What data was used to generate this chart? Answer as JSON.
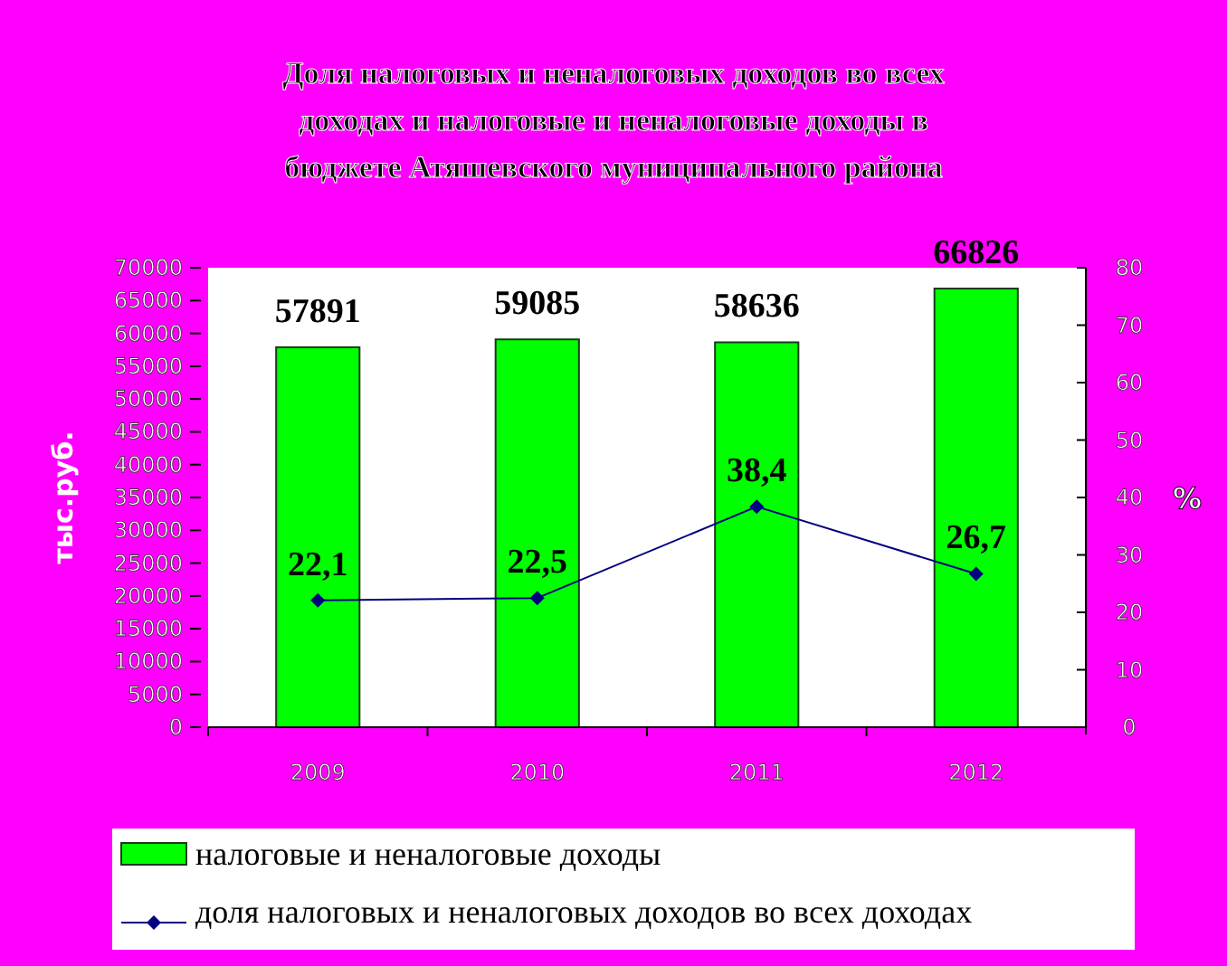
{
  "chart_data": {
    "type": "bar",
    "title": "Доля налоговых и неналоговых доходов во всех доходах и налоговые и неналоговые доходы в бюджете Атяшевского муниципального района",
    "categories": [
      "2009",
      "2010",
      "2011",
      "2012"
    ],
    "series": [
      {
        "name": "налоговые и неналоговые доходы",
        "color": "#00ff00",
        "values": [
          57891,
          59085,
          58636,
          66826
        ]
      },
      {
        "name": "доля налоговых и неналоговых доходов во всех доходах",
        "type": "line",
        "axis": "y2",
        "color": "#000080",
        "values": [
          22.1,
          22.5,
          38.4,
          26.7
        ],
        "value_labels": [
          "22,1",
          "22,5",
          "38,4",
          "26,7"
        ]
      }
    ],
    "ylabel": "тыс.руб.",
    "y2label": "%",
    "ylim": [
      0,
      70000
    ],
    "yticks": [
      0,
      5000,
      10000,
      15000,
      20000,
      25000,
      30000,
      35000,
      40000,
      45000,
      50000,
      55000,
      60000,
      65000,
      70000
    ],
    "y2lim": [
      0,
      80
    ],
    "y2ticks": [
      0,
      10,
      20,
      30,
      40,
      50,
      60,
      70,
      80
    ],
    "data_labels": true,
    "marker": "diamond",
    "legend": "bottom",
    "grid": false
  }
}
